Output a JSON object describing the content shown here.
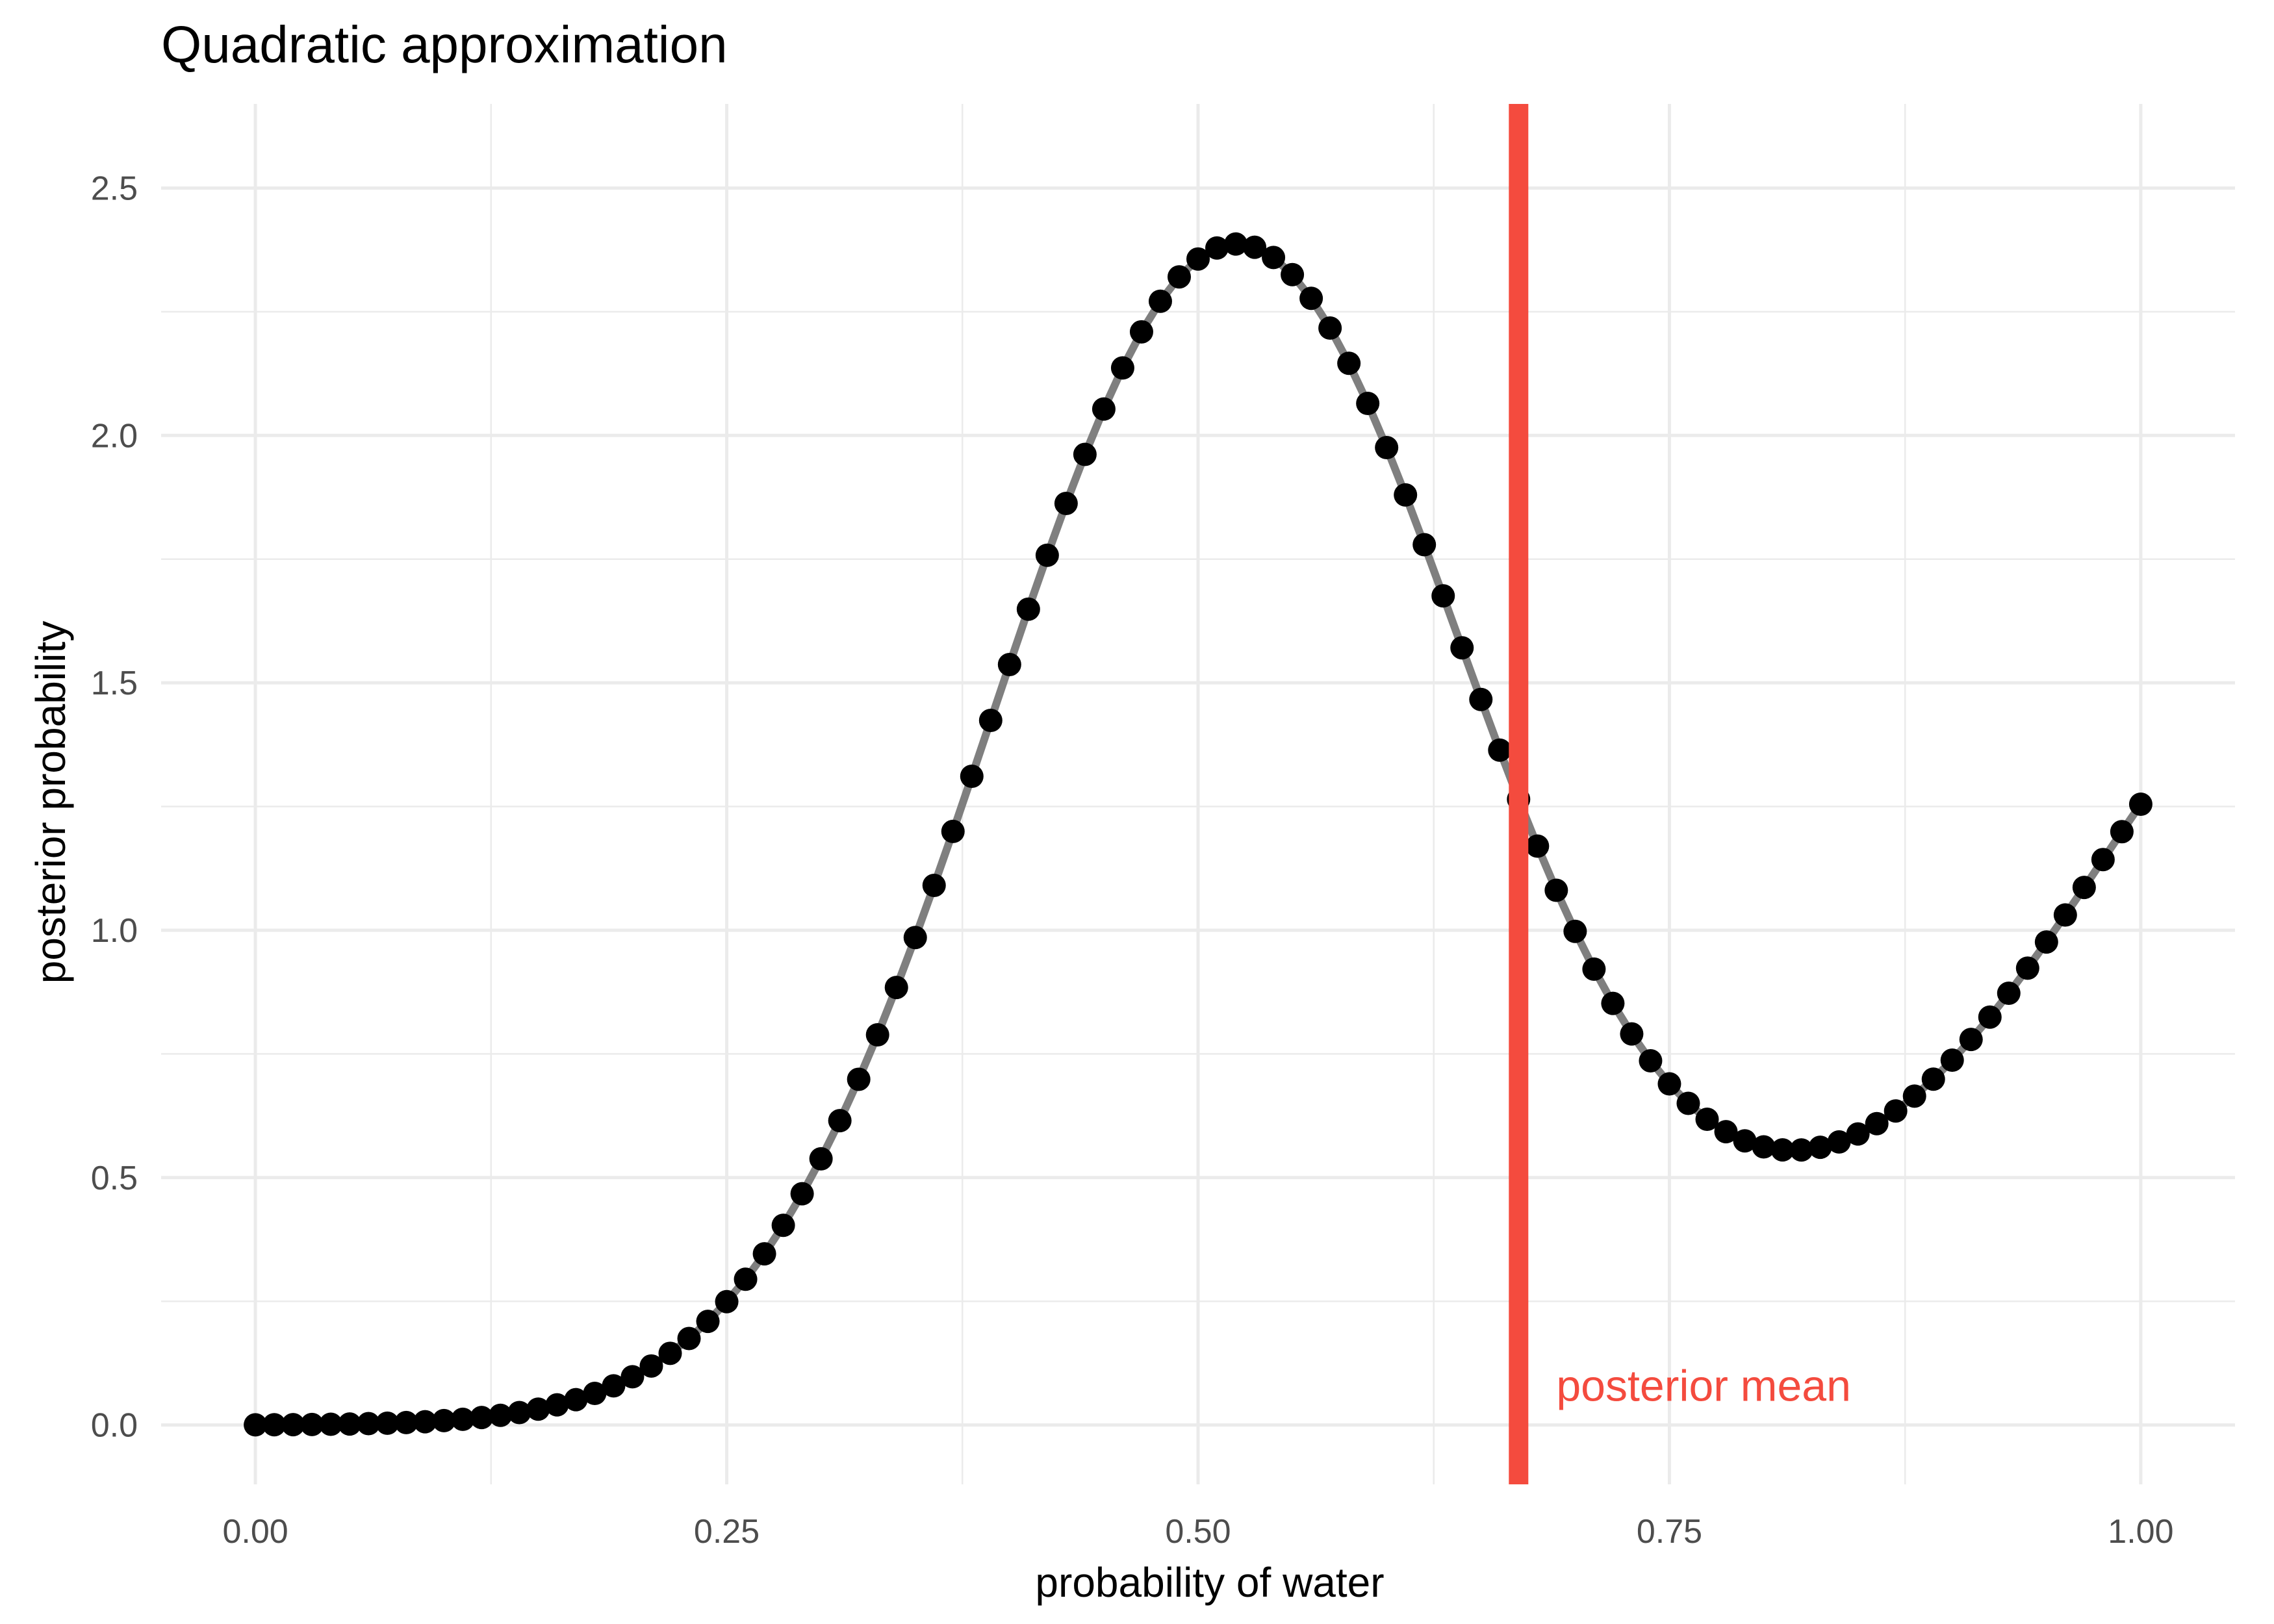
{
  "chart_data": {
    "type": "line",
    "title": "Quadratic approximation",
    "xlabel": "probability of water",
    "ylabel": "posterior probability",
    "xlim": [
      -0.05,
      1.05
    ],
    "ylim": [
      -0.12,
      2.67
    ],
    "x_ticks": [
      0,
      0.25,
      0.5,
      0.75,
      1
    ],
    "x_tick_labels": [
      "0.00",
      "0.25",
      "0.50",
      "0.75",
      "1.00"
    ],
    "y_ticks": [
      0,
      0.5,
      1,
      1.5,
      2,
      2.5
    ],
    "y_tick_labels": [
      "0.0",
      "0.5",
      "1.0",
      "1.5",
      "2.0",
      "2.5"
    ],
    "grid": true,
    "series": [
      {
        "x": [
          0,
          0.01,
          0.02,
          0.03,
          0.04,
          0.05,
          0.06,
          0.07,
          0.08,
          0.09,
          0.1,
          0.11,
          0.12,
          0.13,
          0.14,
          0.15,
          0.16,
          0.17,
          0.18,
          0.19,
          0.2,
          0.21,
          0.22,
          0.23,
          0.24,
          0.25,
          0.26,
          0.27,
          0.28,
          0.29,
          0.3,
          0.31,
          0.32,
          0.33,
          0.34,
          0.35,
          0.36,
          0.37,
          0.38,
          0.39,
          0.4,
          0.41,
          0.42,
          0.43,
          0.44,
          0.45,
          0.46,
          0.47,
          0.48,
          0.49,
          0.5,
          0.51,
          0.52,
          0.53,
          0.54,
          0.55,
          0.56,
          0.57,
          0.58,
          0.59,
          0.6,
          0.61,
          0.62,
          0.63,
          0.64,
          0.65,
          0.66,
          0.67,
          0.68,
          0.69,
          0.7,
          0.71,
          0.72,
          0.73,
          0.74,
          0.75,
          0.76,
          0.77,
          0.78,
          0.79,
          0.8,
          0.81,
          0.82,
          0.83,
          0.84,
          0.85,
          0.86,
          0.87,
          0.88,
          0.89,
          0.9,
          0.91,
          0.92,
          0.93,
          0.94,
          0.95,
          0.96,
          0.97,
          0.98,
          0.99,
          1
        ],
        "y": [
          0.0003,
          0.0005,
          0.0007,
          0.001,
          0.0014,
          0.0019,
          0.0027,
          0.0036,
          0.0049,
          0.0066,
          0.0088,
          0.0115,
          0.0151,
          0.0195,
          0.0251,
          0.032,
          0.0406,
          0.0511,
          0.0638,
          0.0791,
          0.0975,
          0.1192,
          0.1448,
          0.1747,
          0.2094,
          0.2492,
          0.2946,
          0.3459,
          0.4035,
          0.4674,
          0.538,
          0.6151,
          0.6987,
          0.7886,
          0.8843,
          0.9852,
          1.0906,
          1.1996,
          1.3111,
          1.424,
          1.537,
          1.6488,
          1.7578,
          1.8626,
          1.9616,
          2.0534,
          2.1365,
          2.2094,
          2.2712,
          2.3205,
          2.3566,
          2.3789,
          2.3869,
          2.3804,
          2.3596,
          2.325,
          2.2771,
          2.217,
          2.1458,
          2.0647,
          1.9755,
          1.8798,
          1.7792,
          1.6757,
          1.5708,
          1.4664,
          1.3639,
          1.2647,
          1.17,
          1.0807,
          0.9976,
          0.9213,
          0.8521,
          0.7904,
          0.7361,
          0.6894,
          0.6501,
          0.6179,
          0.5927,
          0.5742,
          0.562,
          0.556,
          0.5558,
          0.5613,
          0.5721,
          0.5881,
          0.609,
          0.6346,
          0.6647,
          0.699,
          0.7373,
          0.7792,
          0.8244,
          0.8726,
          0.9233,
          0.9762,
          1.0308,
          1.0865,
          1.1428,
          1.1991,
          1.2546
        ]
      }
    ],
    "annotations": [
      {
        "type": "vline",
        "x": 0.67,
        "color": "#f44b3e"
      },
      {
        "type": "text",
        "text": "posterior mean",
        "x": 0.69,
        "y": 0.08,
        "color": "#f44b3e"
      }
    ],
    "colors": {
      "line": "#7f7f7f",
      "points": "#000000",
      "grid": "#ebebeb",
      "accent": "#f44b3e"
    }
  }
}
